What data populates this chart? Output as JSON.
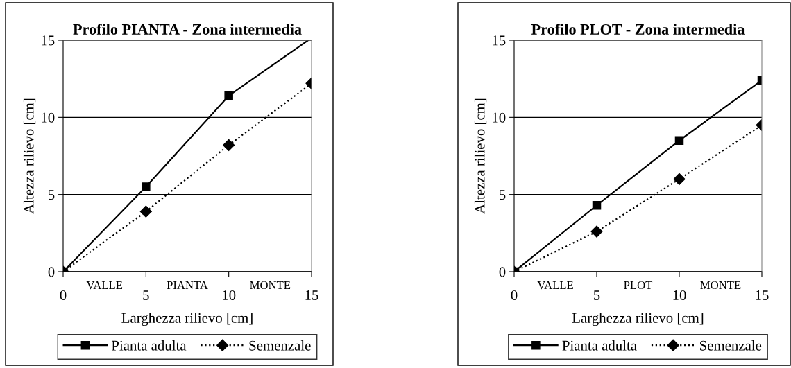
{
  "chart_data": [
    {
      "type": "line",
      "title": "Profilo PIANTA - Zona intermedia",
      "xlabel": "Larghezza rilievo [cm]",
      "ylabel": "Altezza rilievo [cm]",
      "x": [
        0,
        5,
        10,
        15
      ],
      "xlim": [
        0,
        15
      ],
      "ylim": [
        0,
        15
      ],
      "xticks": [
        0,
        5,
        10,
        15
      ],
      "yticks": [
        0,
        5,
        10,
        15
      ],
      "grid": "y",
      "legend": "bottom",
      "annotations": [
        "VALLE",
        "PIANTA",
        "MONTE"
      ],
      "series": [
        {
          "name": "Pianta adulta",
          "color": "#000000",
          "marker": "square",
          "line_style": "solid",
          "x": [
            0,
            5,
            10,
            14.8
          ],
          "values": [
            0,
            5.5,
            11.4,
            15
          ]
        },
        {
          "name": "Semenzale",
          "color": "#000000",
          "marker": "diamond",
          "line_style": "dotted",
          "values": [
            0,
            3.9,
            8.2,
            12.2
          ]
        }
      ]
    },
    {
      "type": "line",
      "title": "Profilo PLOT - Zona intermedia",
      "xlabel": "Larghezza rilievo [cm]",
      "ylabel": "Altezza rilievo [cm]",
      "x": [
        0,
        5,
        10,
        15
      ],
      "xlim": [
        0,
        15
      ],
      "ylim": [
        0,
        15
      ],
      "xticks": [
        0,
        5,
        10,
        15
      ],
      "yticks": [
        0,
        5,
        10,
        15
      ],
      "grid": "y",
      "legend": "bottom",
      "annotations": [
        "VALLE",
        "PLOT",
        "MONTE"
      ],
      "series": [
        {
          "name": "Pianta adulta",
          "color": "#000000",
          "marker": "square",
          "line_style": "solid",
          "values": [
            0,
            4.3,
            8.5,
            12.4
          ]
        },
        {
          "name": "Semenzale",
          "color": "#000000",
          "marker": "diamond",
          "line_style": "dotted",
          "values": [
            0,
            2.6,
            6.0,
            9.5
          ]
        }
      ]
    }
  ]
}
